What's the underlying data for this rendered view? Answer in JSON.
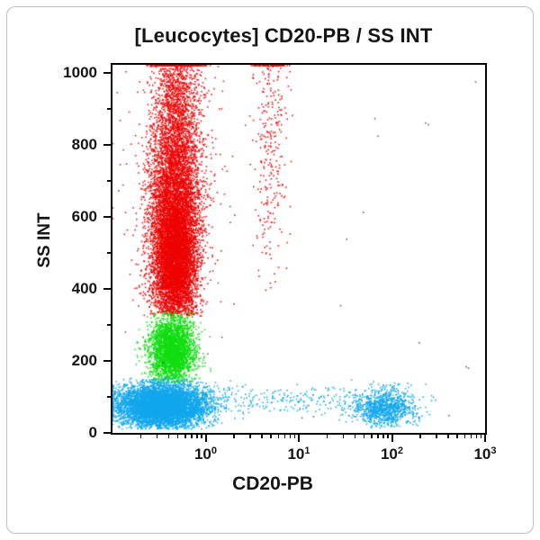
{
  "colors": {
    "axis": "#0a0a0a",
    "text": "#141414",
    "card_border": "#bdbdbd",
    "red_population": "#ee0000",
    "green_population": "#10dd10",
    "blue_population": "#12a7ec"
  },
  "chart_data": {
    "type": "scatter",
    "variant": "flow-cytometry-dot-plot",
    "title": "[Leucocytes] CD20-PB / SS INT",
    "xlabel": "CD20-PB",
    "ylabel": "SS INT",
    "grid": false,
    "legend": "none",
    "x_axis": {
      "scale": "log10",
      "log_range": [
        -1,
        3
      ],
      "ticks": [
        {
          "log": 0,
          "base": "10",
          "exp": "0"
        },
        {
          "log": 1,
          "base": "10",
          "exp": "1"
        },
        {
          "log": 2,
          "base": "10",
          "exp": "2"
        },
        {
          "log": 3,
          "base": "10",
          "exp": "3"
        }
      ],
      "minor_mantissas": [
        2,
        3,
        4,
        5,
        6,
        7,
        8,
        9
      ]
    },
    "y_axis": {
      "scale": "linear",
      "range": [
        0,
        1023
      ],
      "ticks": [
        {
          "value": 0,
          "label": "0"
        },
        {
          "value": 200,
          "label": "200"
        },
        {
          "value": 400,
          "label": "400"
        },
        {
          "value": 600,
          "label": "600"
        },
        {
          "value": 800,
          "label": "800"
        },
        {
          "value": 1000,
          "label": "1000"
        }
      ],
      "minor_values": [
        100,
        300,
        500,
        700,
        900
      ]
    },
    "populations": [
      {
        "name": "granulocytes-main",
        "color": "#ee0000",
        "count": 6500,
        "x": {
          "type": "gauss",
          "mean": -0.33,
          "sd": 0.14
        },
        "y": {
          "type": "gauss",
          "mean": 600,
          "sd": 185,
          "min": 325,
          "max": 1021,
          "clamp_high": true
        }
      },
      {
        "name": "granulocytes-core",
        "color": "#ee0000",
        "count": 3500,
        "x": {
          "type": "gauss",
          "mean": -0.33,
          "sd": 0.11
        },
        "y": {
          "type": "gauss",
          "mean": 480,
          "sd": 85,
          "min": 330,
          "max": 1021,
          "clamp_high": false
        }
      },
      {
        "name": "granulocytes-top",
        "color": "#ee0000",
        "count": 900,
        "x": {
          "type": "gauss",
          "mean": -0.3,
          "sd": 0.12
        },
        "y": {
          "type": "gauss",
          "mean": 950,
          "sd": 120,
          "min": 600,
          "max": 1021,
          "clamp_high": true
        }
      },
      {
        "name": "granulocytes-flank-noise",
        "color": "#e01010",
        "count": 140,
        "x": {
          "type": "gauss",
          "mean": -0.3,
          "sd": 0.35
        },
        "y": {
          "type": "gauss",
          "mean": 620,
          "sd": 210,
          "min": 335,
          "max": 1021,
          "clamp_high": false
        }
      },
      {
        "name": "granulocytes-spillover-column",
        "color": "#ee0000",
        "count": 330,
        "x": {
          "type": "gauss",
          "mean": 0.7,
          "sd": 0.1
        },
        "y": {
          "type": "gauss",
          "mean": 830,
          "sd": 230,
          "min": 390,
          "max": 1021,
          "clamp_high": true
        }
      },
      {
        "name": "monocytes",
        "color": "#10dd10",
        "count": 3000,
        "x": {
          "type": "gauss",
          "mean": -0.36,
          "sd": 0.12
        },
        "y": {
          "type": "gauss",
          "mean": 230,
          "sd": 48,
          "min": 138,
          "max": 335,
          "clamp_high": false
        }
      },
      {
        "name": "lymphocytes",
        "color": "#12a7ec",
        "count": 6500,
        "x": {
          "type": "gauss",
          "mean": -0.46,
          "sd": 0.24
        },
        "y": {
          "type": "gauss",
          "mean": 75,
          "sd": 30,
          "min": 10,
          "max": 152,
          "clamp_high": false
        }
      },
      {
        "name": "lymphocyte-tail",
        "color": "#12a7ec",
        "count": 230,
        "x": {
          "type": "uniform",
          "min": -0.1,
          "max": 1.5
        },
        "y": {
          "type": "gauss",
          "mean": 90,
          "sd": 20,
          "min": 45,
          "max": 140,
          "clamp_high": false
        }
      },
      {
        "name": "b-cells-cd20-positive",
        "color": "#12a7ec",
        "count": 1050,
        "x": {
          "type": "gauss",
          "mean": 1.93,
          "sd": 0.17
        },
        "y": {
          "type": "gauss",
          "mean": 72,
          "sd": 27,
          "min": 14,
          "max": 148,
          "clamp_high": false
        }
      },
      {
        "name": "debris-scatter",
        "color": "#555555",
        "count": 28,
        "x": {
          "type": "uniform",
          "min": -0.9,
          "max": 2.9
        },
        "y": {
          "type": "uniform",
          "min": 30,
          "max": 1000,
          "clamp_high": false
        }
      }
    ]
  }
}
